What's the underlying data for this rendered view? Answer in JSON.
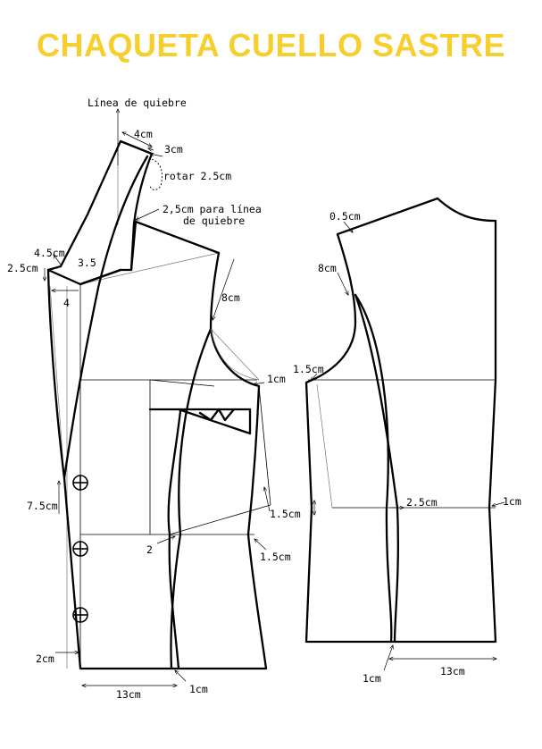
{
  "title": "CHAQUETA CUELLO SASTRE",
  "labels": {
    "linea_quiebre": "Línea de quiebre",
    "cm4": "4cm",
    "cm3": "3cm",
    "rotar": "rotar 2.5cm",
    "para_linea_1": "2,5cm para línea",
    "para_linea_2": "de quiebre",
    "cm4_5": "4.5cm",
    "cm2_5": "2.5cm",
    "v3_5": "3.5",
    "v4": "4",
    "front_8cm": "8cm",
    "front_1cm": "1cm",
    "cm7_5": "7.5cm",
    "front_1_5cm": "1.5cm",
    "v2": "2",
    "front_1_5cm_b": "1.5cm",
    "cm2": "2cm",
    "front_13cm": "13cm",
    "front_hem_1cm": "1cm",
    "back_0_5cm": "0.5cm",
    "back_8cm": "8cm",
    "back_1_5cm": "1.5cm",
    "back_2_5cm": "2.5cm",
    "back_1cm": "1cm",
    "back_hem_1cm": "1cm",
    "back_13cm": "13cm"
  }
}
